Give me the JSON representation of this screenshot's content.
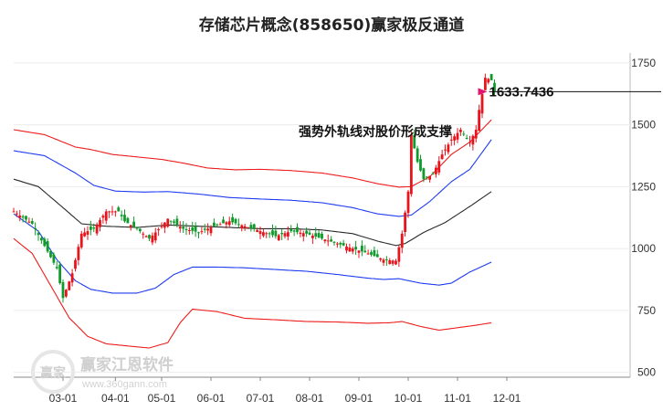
{
  "chart_data": {
    "type": "candlestick",
    "title": "存储芯片概念(858650)赢家极反通道",
    "yticks": [
      500,
      750,
      1000,
      1250,
      1500,
      1750
    ],
    "ylim": [
      480,
      1790
    ],
    "xticks": [
      "03-01",
      "04-01",
      "05-01",
      "06-01",
      "07-01",
      "08-01",
      "09-01",
      "10-01",
      "11-01",
      "12-01"
    ],
    "annotation": {
      "text": "强势外轨线对股价形成支撑",
      "value_label": "1633.7436",
      "value": 1633.7436
    },
    "watermark": {
      "text": "赢家江恩软件",
      "url": "www.360gann.com",
      "badge": "赢家"
    },
    "colors": {
      "up": "#e8141c",
      "down": "#119a2c",
      "outer_band": "#ee1c1c",
      "inner_band": "#1f3cf0",
      "mid_line": "#2a2a2a",
      "arrow": "#e0156e"
    },
    "index_domain": [
      0,
      200
    ],
    "x_tick_index": [
      16,
      33,
      48,
      64,
      80,
      96,
      112,
      128,
      144,
      160
    ],
    "close_path": [
      [
        0,
        1150
      ],
      [
        6,
        1100
      ],
      [
        10,
        1010
      ],
      [
        14,
        920
      ],
      [
        16,
        800
      ],
      [
        19,
        900
      ],
      [
        22,
        1060
      ],
      [
        26,
        1080
      ],
      [
        30,
        1150
      ],
      [
        34,
        1150
      ],
      [
        36,
        1110
      ],
      [
        40,
        1080
      ],
      [
        44,
        1040
      ],
      [
        48,
        1090
      ],
      [
        50,
        1120
      ],
      [
        55,
        1080
      ],
      [
        60,
        1065
      ],
      [
        65,
        1090
      ],
      [
        70,
        1110
      ],
      [
        75,
        1090
      ],
      [
        80,
        1070
      ],
      [
        85,
        1050
      ],
      [
        90,
        1070
      ],
      [
        95,
        1060
      ],
      [
        100,
        1040
      ],
      [
        105,
        1020
      ],
      [
        110,
        1000
      ],
      [
        115,
        980
      ],
      [
        120,
        955
      ],
      [
        124,
        950
      ],
      [
        126,
        1060
      ],
      [
        128,
        1230
      ],
      [
        129,
        1460
      ],
      [
        131,
        1350
      ],
      [
        133,
        1280
      ],
      [
        136,
        1300
      ],
      [
        139,
        1380
      ],
      [
        142,
        1440
      ],
      [
        145,
        1480
      ],
      [
        148,
        1430
      ],
      [
        150,
        1480
      ],
      [
        151,
        1560
      ],
      [
        153,
        1690
      ],
      [
        155,
        1680
      ],
      [
        156,
        1634
      ]
    ],
    "outer_upper": [
      [
        0,
        1480
      ],
      [
        10,
        1460
      ],
      [
        20,
        1410
      ],
      [
        25,
        1400
      ],
      [
        32,
        1380
      ],
      [
        40,
        1370
      ],
      [
        48,
        1360
      ],
      [
        55,
        1345
      ],
      [
        63,
        1325
      ],
      [
        72,
        1318
      ],
      [
        80,
        1320
      ],
      [
        90,
        1315
      ],
      [
        100,
        1305
      ],
      [
        110,
        1285
      ],
      [
        118,
        1262
      ],
      [
        125,
        1248
      ],
      [
        129,
        1250
      ],
      [
        135,
        1290
      ],
      [
        142,
        1380
      ],
      [
        148,
        1430
      ],
      [
        155,
        1520
      ]
    ],
    "inner_upper": [
      [
        0,
        1395
      ],
      [
        10,
        1375
      ],
      [
        20,
        1305
      ],
      [
        26,
        1255
      ],
      [
        33,
        1232
      ],
      [
        42,
        1228
      ],
      [
        50,
        1230
      ],
      [
        60,
        1220
      ],
      [
        70,
        1206
      ],
      [
        80,
        1200
      ],
      [
        90,
        1195
      ],
      [
        100,
        1185
      ],
      [
        110,
        1165
      ],
      [
        118,
        1140
      ],
      [
        125,
        1130
      ],
      [
        129,
        1135
      ],
      [
        135,
        1190
      ],
      [
        142,
        1270
      ],
      [
        148,
        1320
      ],
      [
        155,
        1440
      ]
    ],
    "mid_line": [
      [
        0,
        1280
      ],
      [
        8,
        1250
      ],
      [
        16,
        1165
      ],
      [
        22,
        1100
      ],
      [
        30,
        1090
      ],
      [
        40,
        1085
      ],
      [
        50,
        1095
      ],
      [
        60,
        1090
      ],
      [
        70,
        1085
      ],
      [
        80,
        1080
      ],
      [
        90,
        1080
      ],
      [
        100,
        1075
      ],
      [
        110,
        1060
      ],
      [
        118,
        1030
      ],
      [
        124,
        1012
      ],
      [
        127,
        1020
      ],
      [
        133,
        1065
      ],
      [
        140,
        1105
      ],
      [
        148,
        1170
      ],
      [
        155,
        1230
      ]
    ],
    "inner_lower": [
      [
        0,
        1140
      ],
      [
        8,
        1070
      ],
      [
        14,
        955
      ],
      [
        20,
        870
      ],
      [
        25,
        835
      ],
      [
        32,
        820
      ],
      [
        40,
        820
      ],
      [
        46,
        840
      ],
      [
        52,
        895
      ],
      [
        58,
        925
      ],
      [
        66,
        925
      ],
      [
        75,
        922
      ],
      [
        85,
        915
      ],
      [
        95,
        908
      ],
      [
        105,
        895
      ],
      [
        115,
        880
      ],
      [
        120,
        875
      ],
      [
        125,
        878
      ],
      [
        132,
        860
      ],
      [
        138,
        852
      ],
      [
        142,
        860
      ],
      [
        148,
        905
      ],
      [
        155,
        945
      ]
    ],
    "outer_lower": [
      [
        0,
        1040
      ],
      [
        6,
        980
      ],
      [
        12,
        850
      ],
      [
        18,
        720
      ],
      [
        24,
        645
      ],
      [
        30,
        615
      ],
      [
        38,
        605
      ],
      [
        44,
        598
      ],
      [
        50,
        620
      ],
      [
        54,
        700
      ],
      [
        58,
        755
      ],
      [
        66,
        745
      ],
      [
        75,
        718
      ],
      [
        85,
        712
      ],
      [
        95,
        705
      ],
      [
        105,
        703
      ],
      [
        115,
        698
      ],
      [
        122,
        700
      ],
      [
        126,
        705
      ],
      [
        132,
        685
      ],
      [
        138,
        670
      ],
      [
        144,
        680
      ],
      [
        150,
        690
      ],
      [
        155,
        700
      ]
    ]
  }
}
